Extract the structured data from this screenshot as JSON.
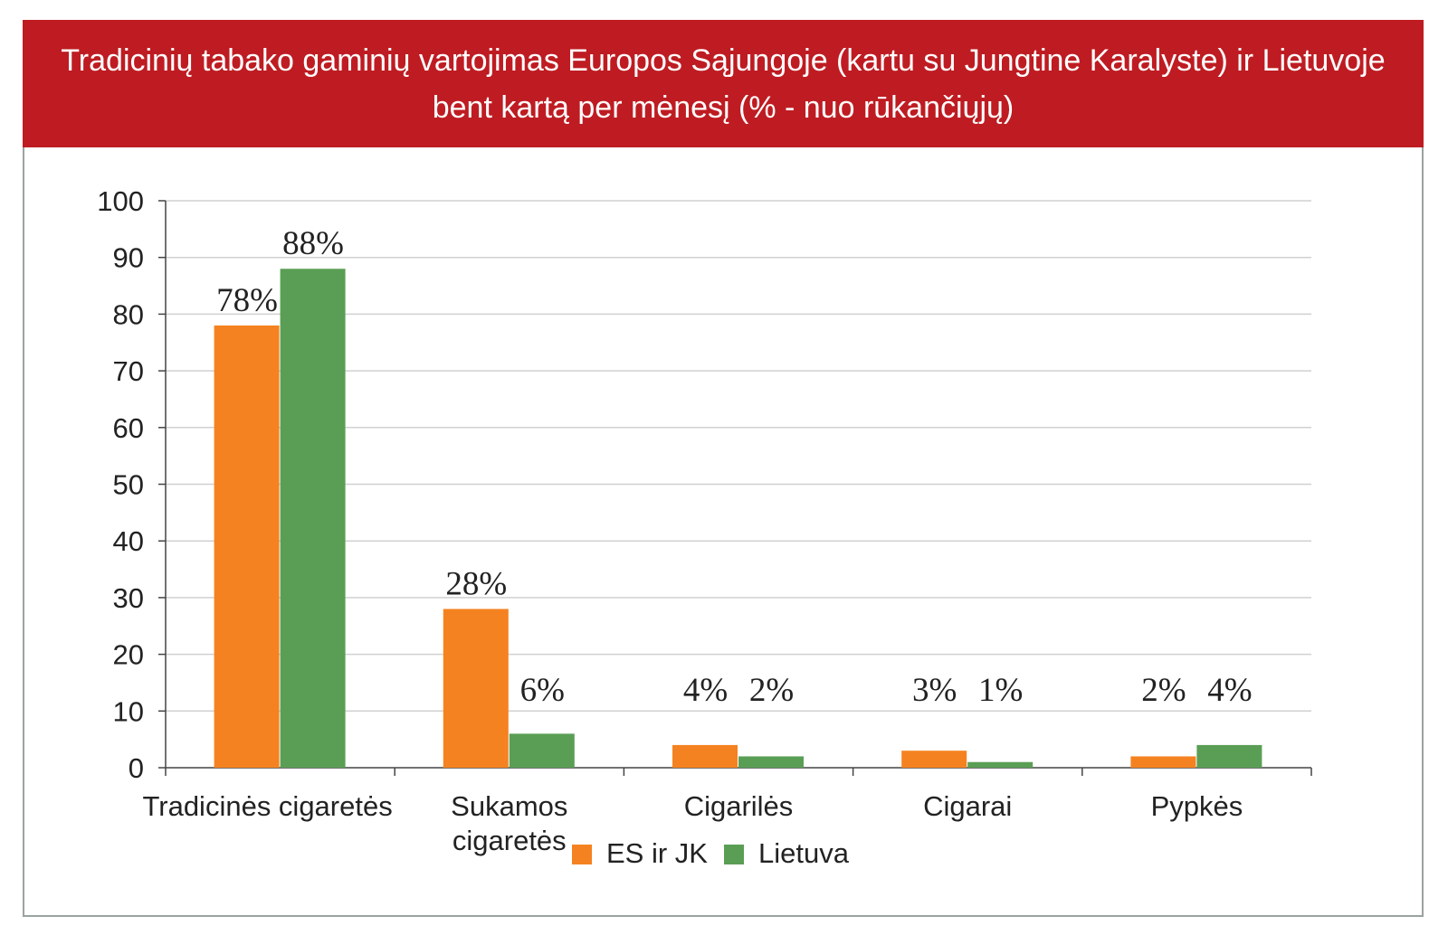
{
  "header": {
    "title_line1": "Tradicinių tabako gaminių vartojimas Europos Sąjungoje (kartu su Jungtine Karalyste) ir Lietuvoje",
    "title_line2": "bent kartą per mėnesį (% - nuo rūkančiųjų)"
  },
  "chart_data": {
    "type": "bar",
    "title": "Tradicinių tabako gaminių vartojimas Europos Sąjungoje (kartu su Jungtine Karalyste) ir Lietuvoje bent kartą per mėnesį (% - nuo rūkančiųjų)",
    "categories": [
      [
        "Tradicinės cigaretės"
      ],
      [
        "Sukamos",
        "cigaretės"
      ],
      [
        "Cigarilės"
      ],
      [
        "Cigarai"
      ],
      [
        "Pypkės"
      ]
    ],
    "series": [
      {
        "name": "ES ir JK",
        "color": "#f58220",
        "values": [
          78,
          28,
          4,
          3,
          2
        ],
        "labels": [
          "78%",
          "28%",
          "4%",
          "3%",
          "2%"
        ]
      },
      {
        "name": "Lietuva",
        "color": "#5a9e55",
        "values": [
          88,
          6,
          2,
          1,
          4
        ],
        "labels": [
          "88%",
          "6%",
          "2%",
          "1%",
          "4%"
        ]
      }
    ],
    "ylim": [
      0,
      100
    ],
    "yticks": [
      0,
      10,
      20,
      30,
      40,
      50,
      60,
      70,
      80,
      90,
      100
    ],
    "xlabel": "",
    "ylabel": "",
    "grid": true,
    "legend_position": "bottom-center"
  }
}
